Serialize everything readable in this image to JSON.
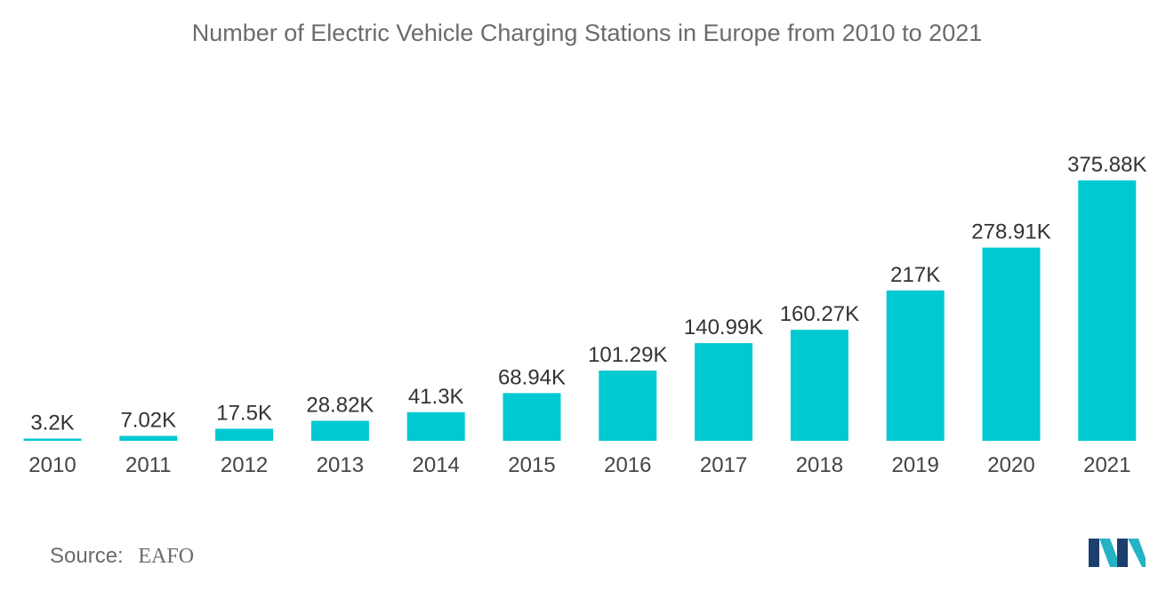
{
  "title": "Number of Electric Vehicle Charging Stations in Europe from 2010 to 2021",
  "source": {
    "label": "Source:",
    "value": "EAFO"
  },
  "colors": {
    "bar": "#00c9d2",
    "text": "#6b6b6b",
    "logo_dark": "#1d3f6e",
    "logo_light": "#24b3c5"
  },
  "logo_icon": "mordor-intelligence-logo",
  "chart_data": {
    "type": "bar",
    "categories": [
      "2010",
      "2011",
      "2012",
      "2013",
      "2014",
      "2015",
      "2016",
      "2017",
      "2018",
      "2019",
      "2020",
      "2021"
    ],
    "values": [
      3.2,
      7.02,
      17.5,
      28.82,
      41.3,
      68.94,
      101.29,
      140.99,
      160.27,
      217,
      278.91,
      375.88
    ],
    "data_labels": [
      "3.2K",
      "7.02K",
      "17.5K",
      "28.82K",
      "41.3K",
      "68.94K",
      "101.29K",
      "140.99K",
      "160.27K",
      "217K",
      "278.91K",
      "375.88K"
    ],
    "title": "Number of Electric Vehicle Charging Stations in Europe from 2010 to 2021",
    "xlabel": "",
    "ylabel": "",
    "unit": "K",
    "ylim": [
      0,
      375.88
    ],
    "grid": false,
    "legend": "none"
  }
}
